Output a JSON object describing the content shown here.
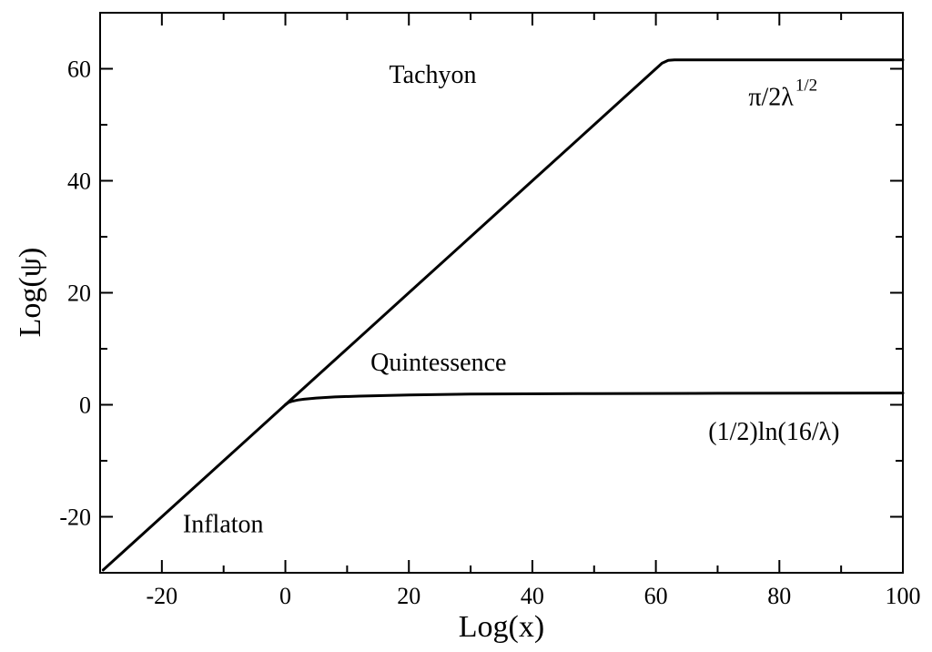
{
  "chart_data": {
    "type": "line",
    "title": "",
    "xlabel": "Log(x)",
    "ylabel": "Log(ψ)",
    "xlim": [
      -30,
      100
    ],
    "ylim": [
      -30,
      70
    ],
    "xticks": [
      -20,
      0,
      20,
      40,
      60,
      80,
      100
    ],
    "yticks": [
      -20,
      0,
      20,
      40,
      60
    ],
    "xtick_labels": [
      "-20",
      "0",
      "20",
      "40",
      "60",
      "80",
      "100"
    ],
    "ytick_labels": [
      "-20",
      "0",
      "20",
      "40",
      "60"
    ],
    "grid": false,
    "legend": "none",
    "series": [
      {
        "x": [
          -29.5,
          -20,
          -10,
          0,
          10,
          20,
          30,
          40,
          50,
          60,
          61,
          62,
          63,
          70,
          80,
          90,
          100
        ],
        "y": [
          -29.5,
          -20,
          -10,
          0,
          10,
          20,
          30,
          40,
          50,
          60,
          61,
          61.5,
          61.6,
          61.6,
          61.6,
          61.6,
          61.6
        ]
      },
      {
        "x": [
          0,
          0.5,
          1,
          2,
          3,
          5,
          8,
          12,
          20,
          30,
          50,
          70,
          100
        ],
        "y": [
          0,
          0.4,
          0.6,
          0.85,
          1.0,
          1.2,
          1.4,
          1.55,
          1.75,
          1.9,
          2.0,
          2.05,
          2.1
        ]
      }
    ],
    "annotations": [
      {
        "text": "Tachyon",
        "x": 16.8,
        "y": 57.5
      },
      {
        "text": "π/2λ",
        "sup": "1/2",
        "x": 75,
        "y": 53.5
      },
      {
        "text": "Quintessence",
        "x": 13.8,
        "y": 6.1
      },
      {
        "text": "(1/2)ln(16/λ)",
        "x": 68.5,
        "y": -6.3
      },
      {
        "text": "Inflaton",
        "x": -16.6,
        "y": -22.8
      }
    ]
  }
}
